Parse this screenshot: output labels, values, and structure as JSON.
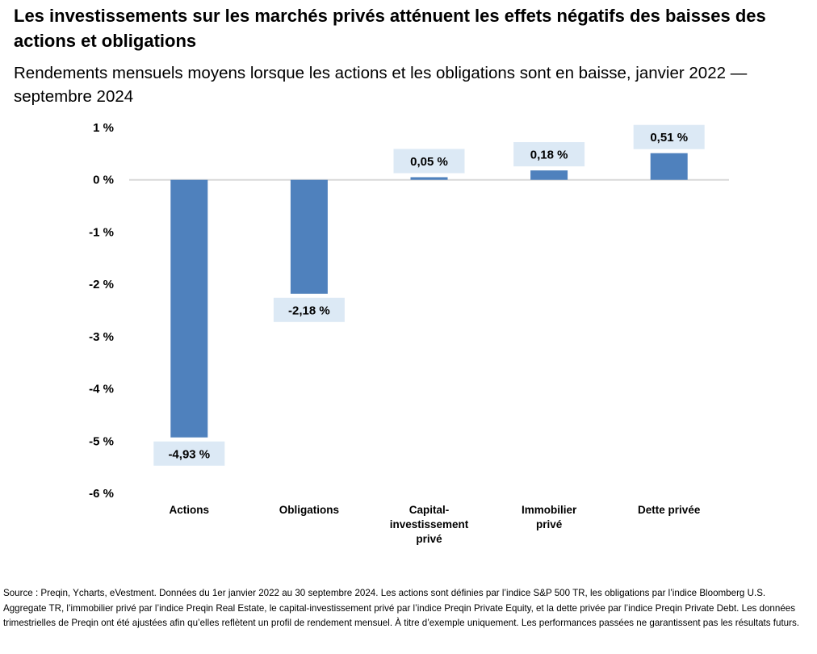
{
  "chart_data": {
    "type": "bar",
    "title": "Les investissements sur les marchés privés atténuent les effets négatifs des baisses des actions et obligations",
    "subtitle": "Rendements mensuels moyens lorsque les actions et les obligations sont en baisse, janvier 2022 — septembre 2024",
    "categories": [
      [
        "Actions"
      ],
      [
        "Obligations"
      ],
      [
        "Capital-",
        "investissement",
        "privé"
      ],
      [
        "Immobilier",
        "privé"
      ],
      [
        "Dette privée"
      ]
    ],
    "values": [
      -4.93,
      -2.18,
      0.05,
      0.18,
      0.51
    ],
    "data_labels": [
      "-4,93 %",
      "-2,18 %",
      "0,05 %",
      "0,18 %",
      "0,51 %"
    ],
    "ylim": [
      -6,
      1
    ],
    "yticks": [
      1,
      0,
      -1,
      -2,
      -3,
      -4,
      -5,
      -6
    ],
    "ytick_labels": [
      "1 %",
      "0 %",
      "-1 %",
      "-2 %",
      "-3 %",
      "-4 %",
      "-5 %",
      "-6 %"
    ],
    "xlabel": "",
    "ylabel": "",
    "grid": false,
    "legend": "none",
    "colors": {
      "bar": "#4f81bd",
      "label_bg": "#dce9f5",
      "zero_line": "#d9d9d9",
      "text": "#000000"
    }
  },
  "footnote": "Source : Preqin, Ycharts, eVestment. Données du 1er janvier 2022 au 30 septembre 2024. Les actions sont définies par l’indice S&P 500 TR, les obligations par l’indice Bloomberg U.S. Aggregate TR, l’immobilier privé par l’indice Preqin Real Estate, le capital-investissement privé par l’indice Preqin Private Equity, et la dette privée par l’indice Preqin Private Debt. Les données trimestrielles de Preqin ont été ajustées afin qu’elles reflètent un profil de rendement mensuel. À titre d’exemple uniquement. Les performances passées ne garantissent pas les résultats futurs."
}
